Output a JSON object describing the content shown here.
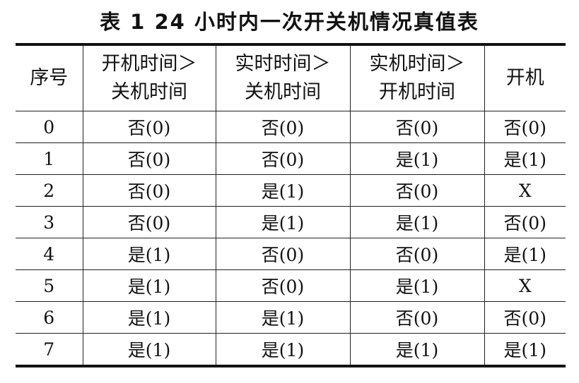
{
  "title": "表 1  24 小时内一次开关机情况真值表",
  "headers": [
    {
      "line1": "序号",
      "line2": ""
    },
    {
      "line1": "开机时间＞",
      "line2": "关机时间"
    },
    {
      "line1": "实时时间＞",
      "line2": "关机时间"
    },
    {
      "line1": "实机时间＞",
      "line2": "开机时间"
    },
    {
      "line1": "开机",
      "line2": ""
    }
  ],
  "rows": [
    [
      "0",
      "否(0)",
      "否(0)",
      "否(0)",
      "否(0)"
    ],
    [
      "1",
      "否(0)",
      "否(0)",
      "是(1)",
      "是(1)"
    ],
    [
      "2",
      "否(0)",
      "是(1)",
      "否(0)",
      "X"
    ],
    [
      "3",
      "否(0)",
      "是(1)",
      "是(1)",
      "否(0)"
    ],
    [
      "4",
      "是(1)",
      "否(0)",
      "否(0)",
      "是(1)"
    ],
    [
      "5",
      "是(1)",
      "否(0)",
      "是(1)",
      "X"
    ],
    [
      "6",
      "是(1)",
      "是(1)",
      "否(0)",
      "否(0)"
    ],
    [
      "7",
      "是(1)",
      "是(1)",
      "是(1)",
      "是(1)"
    ]
  ]
}
